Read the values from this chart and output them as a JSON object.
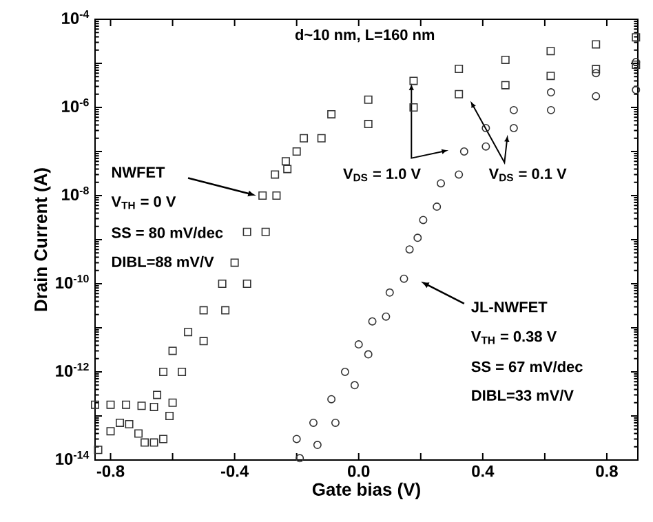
{
  "chart_data": {
    "type": "scatter",
    "xlabel": "Gate bias (V)",
    "ylabel": "Drain Current (A)",
    "log": "y",
    "xlim": [
      -0.85,
      0.9
    ],
    "ylim": [
      1e-14,
      0.0001
    ],
    "xticks": [
      -0.8,
      {
        "value": -0.6,
        "label": null
      },
      -0.4,
      {
        "value": -0.2,
        "label": null
      },
      {
        "value": 0,
        "label": "0.0"
      },
      {
        "value": 0.2,
        "label": null
      },
      0.4,
      {
        "value": 0.6,
        "label": null
      },
      0.8
    ],
    "yticks": [
      {
        "value": 1e-14,
        "label": "10$^{-14}$"
      },
      {
        "value": 1e-13,
        "label": null
      },
      {
        "value": 1e-12,
        "label": "10$^{-12}$"
      },
      {
        "value": 1e-11,
        "label": null
      },
      {
        "value": 1e-10,
        "label": "10$^{-10}$"
      },
      {
        "value": 1e-09,
        "label": null
      },
      {
        "value": 1e-08,
        "label": "10$^{-8}$"
      },
      {
        "value": 1e-07,
        "label": null
      },
      {
        "value": 1e-06,
        "label": "10$^{-6}$"
      },
      {
        "value": 1e-05,
        "label": null
      },
      {
        "value": 0.0001,
        "label": "10$^{-4}$"
      }
    ],
    "series": [
      {
        "color": "#333333",
        "marker": "square",
        "x": [
          -0.85,
          -0.8,
          -0.75,
          -0.7,
          -0.66,
          -0.65,
          -0.63,
          -0.6,
          -0.55,
          -0.5,
          -0.44,
          -0.4,
          -0.36,
          -0.31,
          -0.27,
          -0.235,
          -0.177,
          -0.088,
          0.031,
          0.177,
          0.323,
          0.473,
          0.619,
          0.765,
          0.894
        ],
        "values": [
          1.8e-13,
          1.8e-13,
          1.8e-13,
          1.7e-13,
          1.6e-13,
          3e-13,
          1e-12,
          3e-12,
          8e-12,
          2.5e-11,
          1e-10,
          3e-10,
          1.5e-09,
          1e-08,
          3e-08,
          6e-08,
          2e-07,
          7e-07,
          1.5e-06,
          4e-06,
          7.5e-06,
          1.2e-05,
          1.9e-05,
          2.7e-05,
          3.9e-05
        ]
      },
      {
        "color": "#333333",
        "marker": "square",
        "x": [
          -0.84,
          -0.8,
          -0.77,
          -0.74,
          -0.71,
          -0.69,
          -0.66,
          -0.63,
          -0.61,
          -0.6,
          -0.57,
          -0.5,
          -0.43,
          -0.36,
          -0.3,
          -0.265,
          -0.23,
          -0.2,
          -0.12,
          0.031,
          0.177,
          0.323,
          0.473,
          0.619,
          0.765,
          0.894
        ],
        "values": [
          1.7e-14,
          4.5e-14,
          7e-14,
          6.5e-14,
          4e-14,
          2.5e-14,
          2.5e-14,
          3e-14,
          1e-13,
          2e-13,
          1e-12,
          5e-12,
          2.5e-11,
          1e-10,
          1.5e-09,
          1e-08,
          4e-08,
          1e-07,
          2e-07,
          4.2e-07,
          1e-06,
          2e-06,
          3.2e-06,
          5.2e-06,
          7.4e-06,
          9.3e-06
        ]
      },
      {
        "color": "#333333",
        "marker": "circle",
        "x": [
          -0.2,
          -0.146,
          -0.088,
          -0.044,
          0.0,
          0.044,
          0.1,
          0.164,
          0.208,
          0.265,
          0.34,
          0.41,
          0.5,
          0.62,
          0.765,
          0.894
        ],
        "values": [
          3e-14,
          7e-14,
          2.4e-13,
          1e-12,
          4.2e-12,
          1.4e-11,
          6.3e-11,
          6e-10,
          2.8e-09,
          1.9e-08,
          1e-07,
          3.4e-07,
          8.7e-07,
          2.2e-06,
          6e-06,
          1.07e-05
        ]
      },
      {
        "color": "#333333",
        "marker": "circle",
        "x": [
          -0.19,
          -0.133,
          -0.075,
          -0.013,
          0.031,
          0.088,
          0.146,
          0.19,
          0.252,
          0.323,
          0.41,
          0.5,
          0.62,
          0.765,
          0.894
        ],
        "values": [
          1.1e-14,
          2.2e-14,
          7e-14,
          5e-13,
          2.5e-12,
          1.8e-11,
          1.3e-10,
          1.1e-09,
          5.6e-09,
          3e-08,
          1.3e-07,
          3.4e-07,
          8.7e-07,
          1.8e-06,
          2.5e-06
        ]
      }
    ],
    "annotations": [
      "d~10 nm, L=160 nm",
      "NWFET",
      "V$_{TH}$ = 0 V",
      "SS = 80 mV/dec",
      "DIBL=88 mV/V",
      "V$_{DS}$ = 1.0 V",
      "V$_{DS}$ = 0.1 V",
      "JL-NWFET",
      "V$_{TH}$ = 0.38 V",
      "SS = 67 mV/dec",
      "DIBL=33 mV/V"
    ]
  }
}
